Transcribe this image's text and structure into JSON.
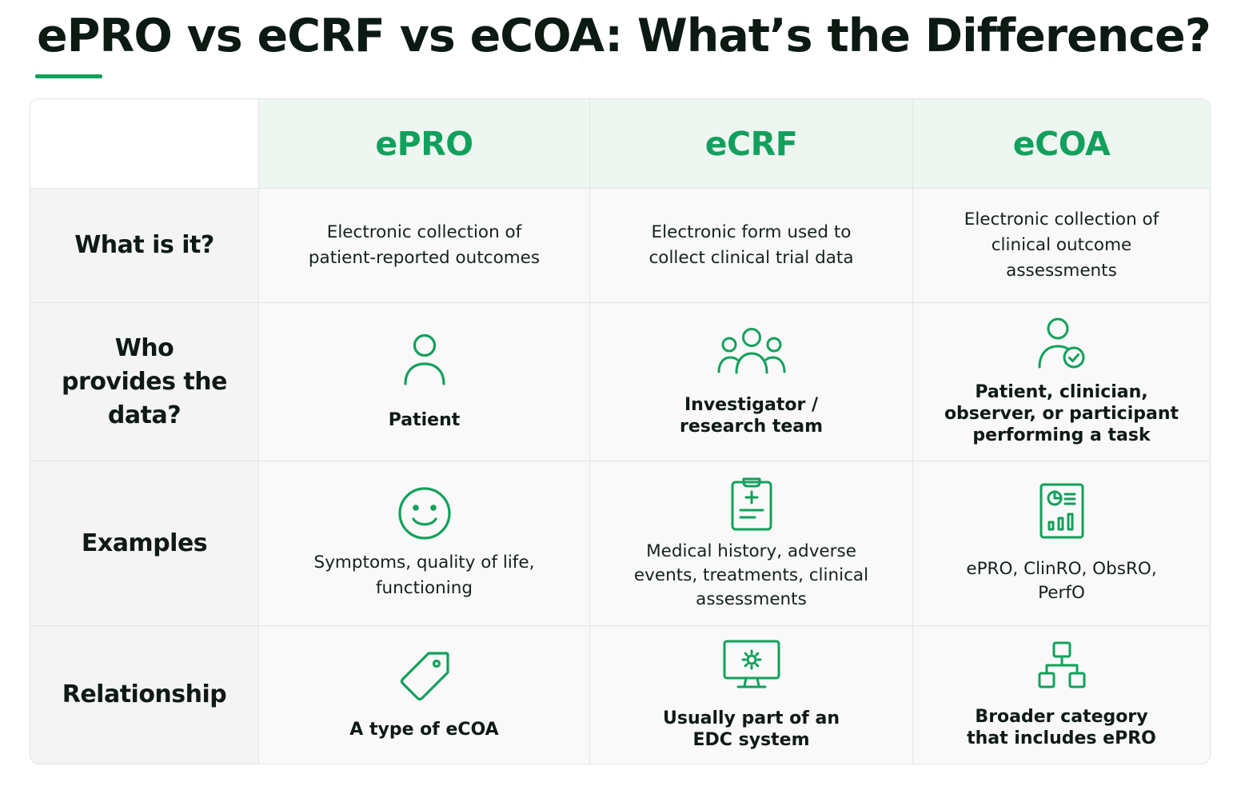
{
  "title": "ePRO vs eCRF vs eCOA: What’s the Difference?",
  "colors": {
    "accent": "#12a05c",
    "header_bg": "#eef6f1",
    "text": "#0f1a14"
  },
  "columns": [
    "ePRO",
    "eCRF",
    "eCOA"
  ],
  "rows": [
    {
      "label": "What is it?",
      "cells": [
        {
          "text": "Electronic collection of patient-reported outcomes"
        },
        {
          "text": "Electronic form used to collect clinical trial data"
        },
        {
          "text": "Electronic collection of clinical outcome assessments"
        }
      ]
    },
    {
      "label": "Who provides the data?",
      "cells": [
        {
          "icon": "person-icon",
          "text": "Patient"
        },
        {
          "icon": "group-icon",
          "text": "Investigator / research team"
        },
        {
          "icon": "person-check-icon",
          "text": "Patient, clinician, observer, or participant performing a task"
        }
      ]
    },
    {
      "label": "Examples",
      "cells": [
        {
          "icon": "smiley-face-icon",
          "text": "Symptoms, quality of life, functioning"
        },
        {
          "icon": "medical-clipboard-icon",
          "text": "Medical history, adverse events, treatments, clinical assessments"
        },
        {
          "icon": "chart-report-icon",
          "text": "ePRO, ClinRO, ObsRO, PerfO"
        }
      ]
    },
    {
      "label": "Relationship",
      "cells": [
        {
          "icon": "tag-icon",
          "text": "A type of eCOA"
        },
        {
          "icon": "monitor-gear-icon",
          "text": "Usually part of an EDC system"
        },
        {
          "icon": "hierarchy-icon",
          "text": "Broader category that includes ePRO"
        }
      ]
    }
  ]
}
